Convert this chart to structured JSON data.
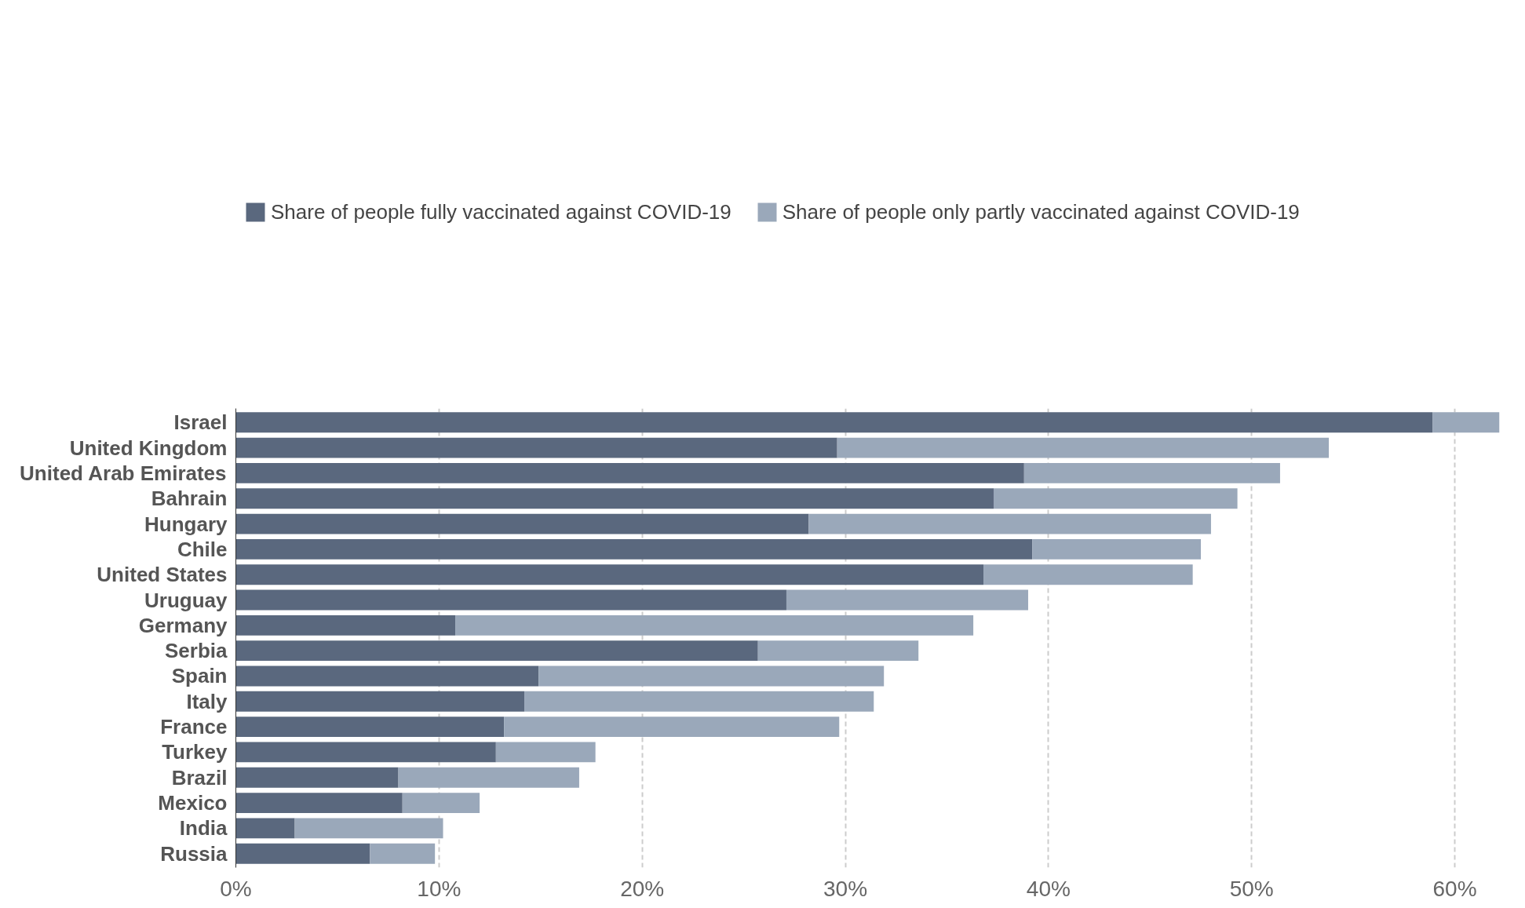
{
  "chart_data": {
    "type": "bar",
    "orientation": "horizontal",
    "stacked": true,
    "categories": [
      "Israel",
      "United Kingdom",
      "United Arab Emirates",
      "Bahrain",
      "Hungary",
      "Chile",
      "United States",
      "Uruguay",
      "Germany",
      "Serbia",
      "Spain",
      "Italy",
      "France",
      "Turkey",
      "Brazil",
      "Mexico",
      "India",
      "Russia"
    ],
    "series": [
      {
        "name": "Share of people fully vaccinated against COVID-19",
        "color": "#5a687e",
        "values": [
          58.9,
          29.6,
          38.8,
          37.3,
          28.2,
          39.2,
          36.8,
          27.1,
          10.8,
          25.7,
          14.9,
          14.2,
          13.2,
          12.8,
          8.0,
          8.2,
          2.9,
          6.6
        ]
      },
      {
        "name": "Share of people only partly vaccinated against COVID-19",
        "color": "#9aa8ba",
        "values": [
          3.3,
          24.2,
          12.6,
          12.0,
          19.8,
          8.3,
          10.3,
          11.9,
          25.5,
          7.9,
          17.0,
          17.2,
          16.5,
          4.9,
          8.9,
          3.8,
          7.3,
          3.2
        ]
      }
    ],
    "xlim": [
      0,
      62.2
    ],
    "xticks": [
      {
        "value": 0,
        "label": "0%"
      },
      {
        "value": 10,
        "label": "10%"
      },
      {
        "value": 20,
        "label": "20%"
      },
      {
        "value": 30,
        "label": "30%"
      },
      {
        "value": 40,
        "label": "40%"
      },
      {
        "value": 50,
        "label": "50%"
      },
      {
        "value": 60,
        "label": "60%"
      }
    ],
    "grid": "x",
    "legend": "top"
  }
}
